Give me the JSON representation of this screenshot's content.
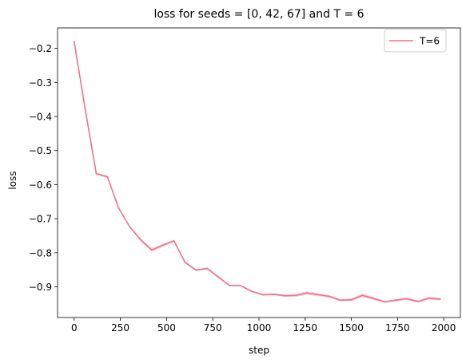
{
  "chart_data": {
    "type": "line",
    "title": "loss for seeds = [0, 42, 67] and T = 6",
    "xlabel": "step",
    "ylabel": "loss",
    "xlim": [
      -90,
      2090
    ],
    "ylim": [
      -0.99,
      -0.14
    ],
    "xticks": [
      0,
      250,
      500,
      750,
      1000,
      1250,
      1500,
      1750,
      2000
    ],
    "xtick_labels": [
      "0",
      "250",
      "500",
      "750",
      "1000",
      "1250",
      "1500",
      "1750",
      "2000"
    ],
    "yticks": [
      -0.2,
      -0.3,
      -0.4,
      -0.5,
      -0.6,
      -0.7,
      -0.8,
      -0.9
    ],
    "ytick_labels": [
      "−0.2",
      "−0.3",
      "−0.4",
      "−0.5",
      "−0.6",
      "−0.7",
      "−0.8",
      "−0.9"
    ],
    "grid": false,
    "legend": {
      "position": "top-right",
      "entries": [
        "T=6"
      ]
    },
    "series": [
      {
        "name": "T=6",
        "color": "#f0718a",
        "band_color": "#f4a7b9",
        "x": [
          0,
          60,
          120,
          180,
          240,
          300,
          360,
          420,
          480,
          540,
          600,
          660,
          720,
          780,
          840,
          900,
          960,
          1020,
          1080,
          1140,
          1200,
          1260,
          1320,
          1380,
          1440,
          1500,
          1560,
          1620,
          1680,
          1740,
          1800,
          1860,
          1920,
          1980
        ],
        "y": [
          -0.18,
          -0.38,
          -0.568,
          -0.577,
          -0.668,
          -0.723,
          -0.762,
          -0.792,
          -0.778,
          -0.765,
          -0.828,
          -0.851,
          -0.846,
          -0.871,
          -0.896,
          -0.896,
          -0.913,
          -0.923,
          -0.922,
          -0.926,
          -0.925,
          -0.918,
          -0.923,
          -0.928,
          -0.939,
          -0.938,
          -0.925,
          -0.934,
          -0.944,
          -0.939,
          -0.935,
          -0.943,
          -0.933,
          -0.936
        ],
        "spread": [
          0.001,
          0.002,
          0.003,
          0.004,
          0.003,
          0.003,
          0.004,
          0.005,
          0.004,
          0.003,
          0.003,
          0.003,
          0.003,
          0.003,
          0.002,
          0.002,
          0.002,
          0.003,
          0.003,
          0.003,
          0.004,
          0.005,
          0.004,
          0.004,
          0.003,
          0.004,
          0.005,
          0.004,
          0.003,
          0.003,
          0.004,
          0.003,
          0.004,
          0.004
        ]
      }
    ]
  }
}
